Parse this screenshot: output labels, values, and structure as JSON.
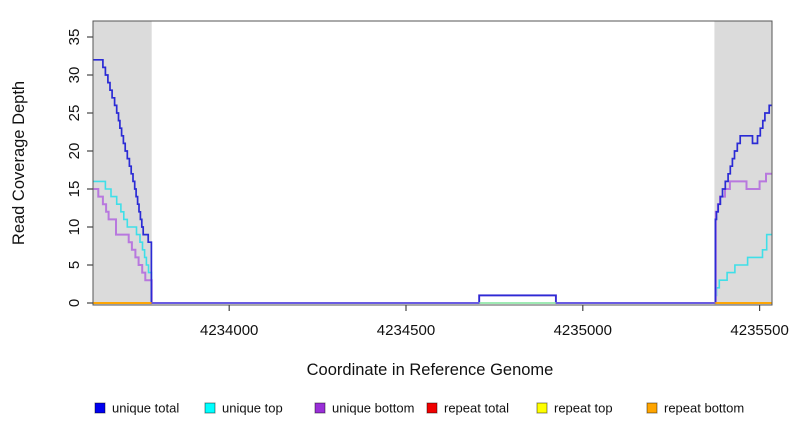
{
  "chart_data": {
    "type": "line",
    "subtype": "step-coverage-plot",
    "title": "",
    "xlabel": "Coordinate in Reference Genome",
    "ylabel": "Read Coverage Depth",
    "xlim": [
      4233615,
      4235535
    ],
    "ylim": [
      0,
      37
    ],
    "x_ticks": [
      "4234000",
      "4234500",
      "4235000",
      "4235500"
    ],
    "x_tick_values": [
      4234000,
      4234500,
      4235000,
      4235500
    ],
    "y_ticks": [
      "0",
      "5",
      "10",
      "15",
      "20",
      "25",
      "30",
      "35"
    ],
    "y_tick_values": [
      0,
      5,
      10,
      15,
      20,
      25,
      30,
      35
    ],
    "grid": false,
    "legend_position": "bottom",
    "colors": {
      "box": "#555555",
      "tick": "#444444",
      "shaded_region": "#DBDBDB",
      "baseline_overlap_violet": "#7366E6",
      "bump_overlap_green": "#9FE8A0"
    },
    "shaded_regions": [
      {
        "name": "repeat-region-left",
        "x0": 4233615,
        "x1": 4233781
      },
      {
        "name": "repeat-region-right",
        "x0": 4235372,
        "x1": 4235535
      }
    ],
    "series": [
      {
        "name": "repeat-total-line",
        "label": "repeat total",
        "color": "#E00000",
        "width": 1.6,
        "segments": [
          [
            [
              4233615,
              0
            ],
            [
              4233781,
              0
            ]
          ],
          [
            [
              4235372,
              0
            ],
            [
              4235535,
              0
            ]
          ]
        ]
      },
      {
        "name": "repeat-top-line",
        "label": "repeat top",
        "color": "#FFE900",
        "width": 1.6,
        "segments": [
          [
            [
              4233615,
              0
            ],
            [
              4233781,
              0
            ]
          ],
          [
            [
              4235372,
              0
            ],
            [
              4235535,
              0
            ]
          ]
        ]
      },
      {
        "name": "unique-top-line",
        "label": "unique top",
        "color": "#3FDFE8",
        "width": 1.6,
        "segments": [
          [
            [
              4233615,
              16
            ],
            [
              4233650,
              15
            ],
            [
              4233666,
              14
            ],
            [
              4233682,
              13
            ],
            [
              4233694,
              12
            ],
            [
              4233702,
              11
            ],
            [
              4233712,
              10
            ],
            [
              4233738,
              9
            ],
            [
              4233748,
              8
            ],
            [
              4233755,
              7
            ],
            [
              4233761,
              6
            ],
            [
              4233766,
              5
            ],
            [
              4233772,
              4
            ],
            [
              4233780,
              0
            ],
            [
              4235375,
              1
            ],
            [
              4235378,
              2
            ],
            [
              4235386,
              3
            ],
            [
              4235408,
              4
            ],
            [
              4235430,
              5
            ],
            [
              4235466,
              6
            ],
            [
              4235508,
              7
            ],
            [
              4235520,
              9
            ],
            [
              4235535,
              9
            ]
          ]
        ]
      },
      {
        "name": "unique-bottom-line",
        "label": "unique bottom",
        "color": "#B878DE",
        "width": 2.0,
        "segments": [
          [
            [
              4233615,
              15
            ],
            [
              4233630,
              14
            ],
            [
              4233643,
              13
            ],
            [
              4233652,
              12
            ],
            [
              4233659,
              11
            ],
            [
              4233680,
              9
            ],
            [
              4233716,
              8
            ],
            [
              4233725,
              7
            ],
            [
              4233735,
              6
            ],
            [
              4233744,
              5
            ],
            [
              4233754,
              4
            ],
            [
              4233763,
              3
            ],
            [
              4233781,
              0
            ],
            [
              4234707,
              1
            ],
            [
              4234924,
              0
            ],
            [
              4235376,
              12
            ],
            [
              4235382,
              13
            ],
            [
              4235388,
              14
            ],
            [
              4235402,
              15
            ],
            [
              4235416,
              16
            ],
            [
              4235463,
              15
            ],
            [
              4235500,
              16
            ],
            [
              4235518,
              17
            ],
            [
              4235535,
              17
            ]
          ]
        ]
      },
      {
        "name": "unique-total-line",
        "label": "unique total",
        "color": "#2B2BD5",
        "width": 1.7,
        "segments": [
          [
            [
              4233615,
              32
            ],
            [
              4233643,
              31
            ],
            [
              4233650,
              30
            ],
            [
              4233657,
              29
            ],
            [
              4233663,
              28
            ],
            [
              4233669,
              27
            ],
            [
              4233676,
              26
            ],
            [
              4233682,
              25
            ],
            [
              4233687,
              24
            ],
            [
              4233691,
              23
            ],
            [
              4233696,
              22
            ],
            [
              4233701,
              21
            ],
            [
              4233706,
              20
            ],
            [
              4233712,
              19
            ],
            [
              4233718,
              18
            ],
            [
              4233723,
              17
            ],
            [
              4233728,
              16
            ],
            [
              4233733,
              15
            ],
            [
              4233737,
              14
            ],
            [
              4233741,
              13
            ],
            [
              4233745,
              12
            ],
            [
              4233749,
              11
            ],
            [
              4233753,
              10
            ],
            [
              4233757,
              9
            ],
            [
              4233771,
              8
            ],
            [
              4233780,
              0
            ],
            [
              4234707,
              1
            ],
            [
              4234924,
              0
            ],
            [
              4235375,
              11
            ],
            [
              4235378,
              12
            ],
            [
              4235383,
              13
            ],
            [
              4235389,
              14
            ],
            [
              4235395,
              15
            ],
            [
              4235403,
              16
            ],
            [
              4235411,
              17
            ],
            [
              4235417,
              18
            ],
            [
              4235423,
              19
            ],
            [
              4235429,
              20
            ],
            [
              4235437,
              21
            ],
            [
              4235445,
              22
            ],
            [
              4235480,
              21
            ],
            [
              4235494,
              22
            ],
            [
              4235502,
              23
            ],
            [
              4235509,
              24
            ],
            [
              4235515,
              25
            ],
            [
              4235527,
              26
            ],
            [
              4235535,
              26
            ]
          ]
        ]
      },
      {
        "name": "repeat-bottom-line",
        "label": "repeat bottom",
        "color": "#FFA500",
        "width": 1.8,
        "segments": [
          [
            [
              4233615,
              0
            ],
            [
              4233781,
              0
            ]
          ],
          [
            [
              4235372,
              0
            ],
            [
              4235535,
              0
            ]
          ]
        ]
      },
      {
        "name": "baseline-overlap-violet",
        "label": null,
        "color": "#7366E6",
        "width": 1.6,
        "segments": [
          [
            [
              4233781,
              0
            ],
            [
              4234707,
              0
            ]
          ],
          [
            [
              4234924,
              0
            ],
            [
              4235375,
              0
            ]
          ]
        ]
      },
      {
        "name": "bump-baseline-overlap-green",
        "label": null,
        "color": "#9FE8A0",
        "width": 1.4,
        "segments": [
          [
            [
              4234707,
              0
            ],
            [
              4234924,
              0
            ]
          ]
        ]
      }
    ],
    "legend": [
      {
        "label": "unique total",
        "color": "#0000F0"
      },
      {
        "label": "unique top",
        "color": "#00FFFF"
      },
      {
        "label": "unique bottom",
        "color": "#9A2FD8"
      },
      {
        "label": "repeat total",
        "color": "#F00000"
      },
      {
        "label": "repeat top",
        "color": "#FFFF00"
      },
      {
        "label": "repeat bottom",
        "color": "#FFA500"
      }
    ]
  }
}
